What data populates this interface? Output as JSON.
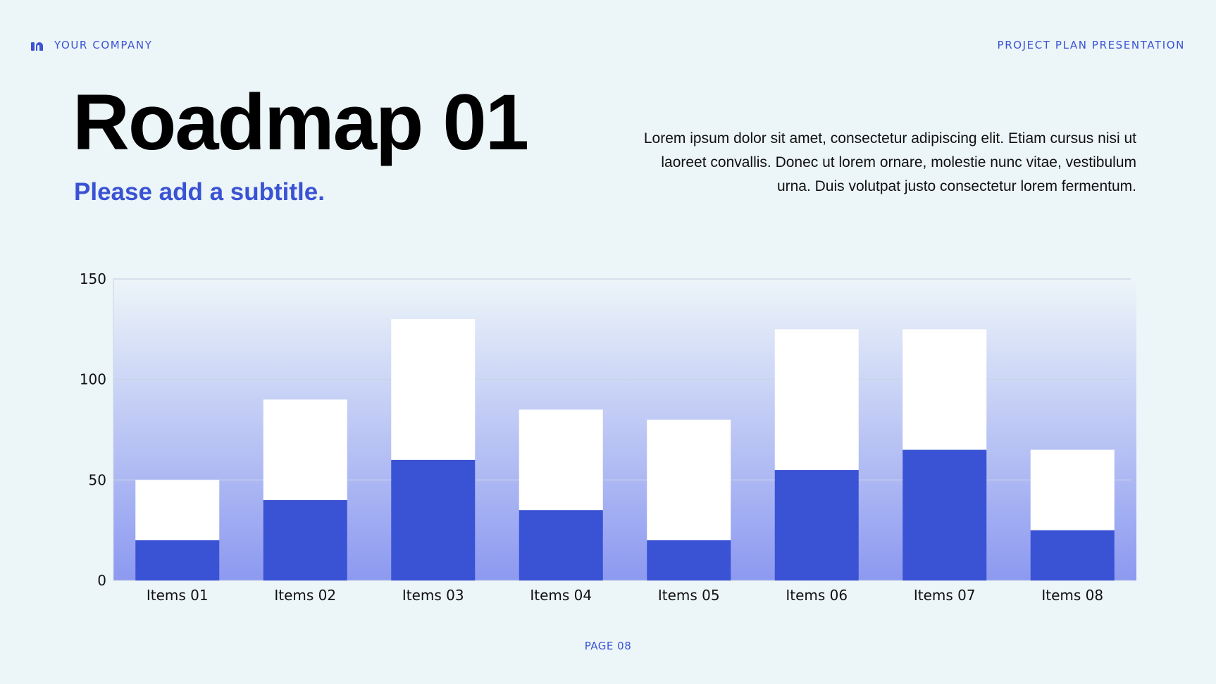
{
  "header": {
    "company": "YOUR COMPANY",
    "presentation": "PROJECT PLAN PRESENTATION",
    "logo_icon": "company-logo-icon"
  },
  "slide": {
    "title": "Roadmap 01",
    "subtitle": "Please add a subtitle.",
    "intro": "Lorem ipsum dolor sit amet, consectetur adipiscing elit. Etiam cursus nisi ut laoreet convallis. Donec ut lorem ornare, molestie nunc vitae, vestibulum urna. Duis volutpat justo consectetur lorem fermentum."
  },
  "chart_data": {
    "type": "bar",
    "stacked": true,
    "categories": [
      "Items 01",
      "Items 02",
      "Items 03",
      "Items 04",
      "Items 05",
      "Items 06",
      "Items 07",
      "Items 08"
    ],
    "series": [
      {
        "values": [
          20,
          40,
          60,
          35,
          20,
          55,
          65,
          25
        ],
        "color": "#3a52d4"
      },
      {
        "values": [
          30,
          50,
          70,
          50,
          60,
          70,
          60,
          40
        ],
        "color": "#ffffff"
      }
    ],
    "ylim": [
      0,
      150
    ],
    "yticks": [
      0,
      50,
      100,
      150
    ],
    "grid": true,
    "background_gradient": [
      "#edf5f9",
      "#8c99f0"
    ]
  },
  "footer": {
    "page": "PAGE 08"
  }
}
